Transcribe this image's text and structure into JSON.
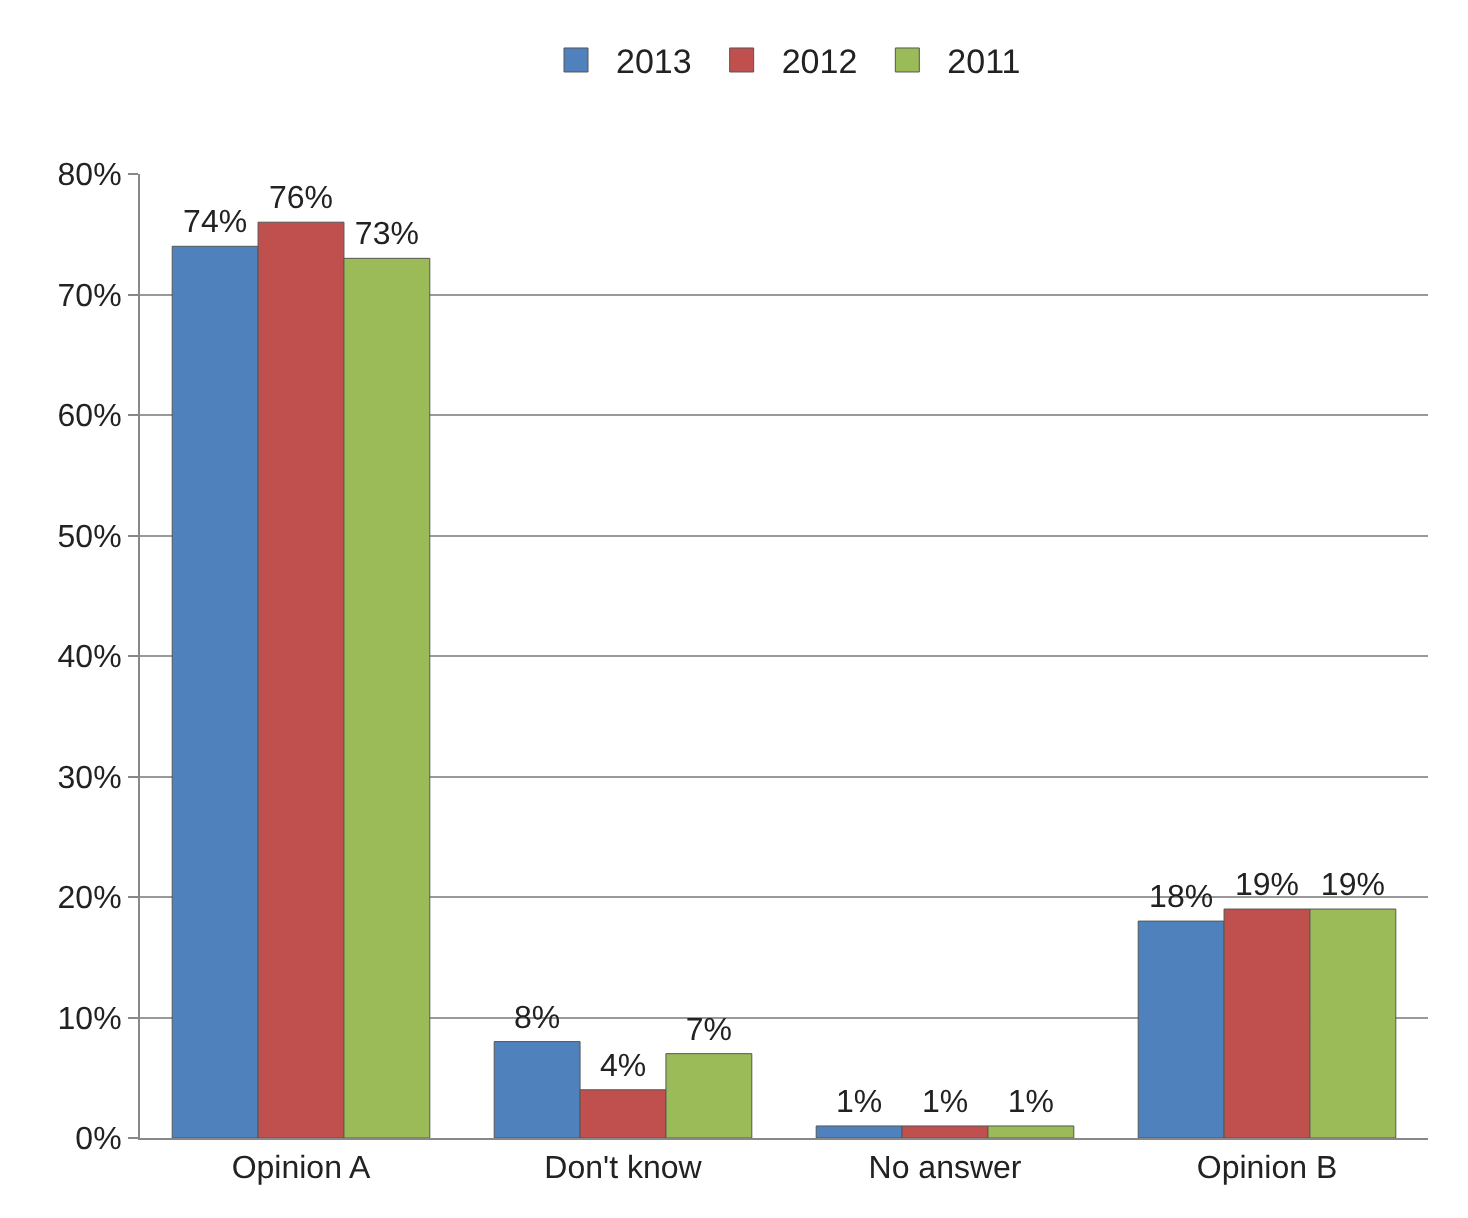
{
  "chart_data": {
    "type": "bar",
    "categories": [
      "Opinion A",
      "Don't know",
      "No answer",
      "Opinion B"
    ],
    "series": [
      {
        "name": "2013",
        "color": "#4f81bd",
        "values": [
          74,
          8,
          1,
          18
        ],
        "value_labels": [
          "74%",
          "8%",
          "1%",
          "18%"
        ]
      },
      {
        "name": "2012",
        "color": "#c0504d",
        "values": [
          76,
          4,
          1,
          19
        ],
        "value_labels": [
          "76%",
          "4%",
          "1%",
          "19%"
        ]
      },
      {
        "name": "2011",
        "color": "#9bbb59",
        "values": [
          73,
          7,
          1,
          19
        ],
        "value_labels": [
          "73%",
          "7%",
          "1%",
          "19%"
        ]
      }
    ],
    "ylim": [
      0,
      80
    ],
    "yticks": [
      {
        "value": 0,
        "label": "0%"
      },
      {
        "value": 10,
        "label": "10%"
      },
      {
        "value": 20,
        "label": "20%"
      },
      {
        "value": 30,
        "label": "30%"
      },
      {
        "value": 40,
        "label": "40%"
      },
      {
        "value": 50,
        "label": "50%"
      },
      {
        "value": 60,
        "label": "60%"
      },
      {
        "value": 70,
        "label": "70%"
      },
      {
        "value": 80,
        "label": "80%"
      }
    ],
    "grid": "y",
    "legend": "top"
  }
}
